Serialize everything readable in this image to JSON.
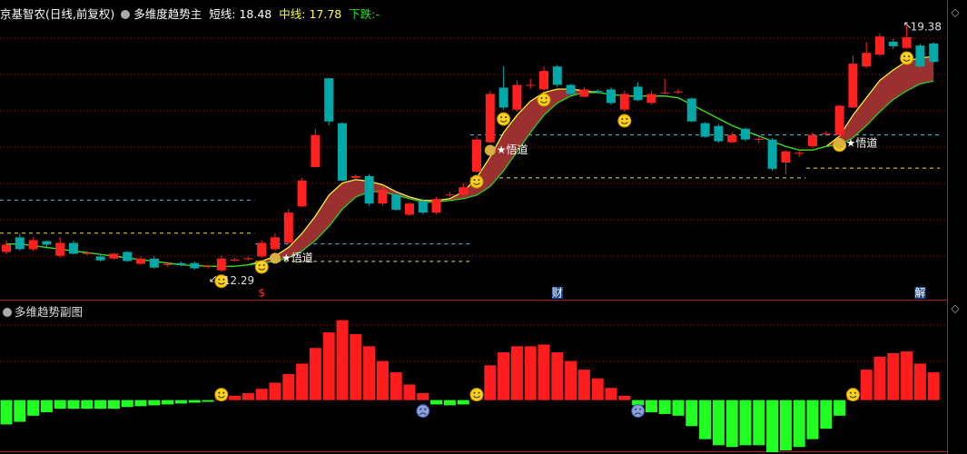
{
  "header": {
    "title": "京基智农(日线,前复权)",
    "indicator": "多维度趋势主",
    "down_label": "下跌:",
    "down_value": "-"
  },
  "chart_data": [
    {
      "type": "candlestick",
      "open": [
        12.87,
        13.29,
        12.95,
        13.18,
        12.76,
        13.13,
        12.82,
        12.74,
        12.68,
        12.87,
        12.53,
        12.68,
        12.5,
        12.55,
        12.55,
        12.44,
        12.34,
        12.62,
        12.66,
        12.74,
        12.95,
        13.13,
        14.18,
        15.31,
        17.86,
        16.57,
        15.0,
        15.05,
        14.26,
        14.52,
        13.94,
        14.34,
        14.0,
        14.5,
        14.52,
        15.18,
        16.02,
        17.59,
        16.96,
        17.65,
        17.54,
        18.2,
        17.67,
        17.33,
        17.5,
        17.54,
        16.96,
        17.62,
        17.15,
        17.43,
        17.46,
        17.28,
        16.57,
        16.49,
        16.02,
        16.41,
        16.1,
        16.1,
        15.44,
        15.7,
        15.91,
        16.26,
        16.23,
        17.02,
        18.2,
        18.54,
        18.91,
        18.73,
        18.8,
        18.86
      ],
      "high": [
        13.2,
        13.4,
        13.3,
        13.2,
        13.3,
        13.2,
        12.9,
        12.8,
        12.85,
        12.9,
        12.75,
        12.75,
        12.58,
        12.6,
        12.6,
        12.5,
        12.78,
        12.7,
        12.74,
        13.2,
        13.4,
        14.1,
        15.0,
        16.4,
        17.86,
        16.6,
        15.1,
        15.1,
        14.75,
        14.55,
        14.3,
        14.4,
        14.45,
        14.6,
        14.85,
        16.2,
        17.5,
        18.2,
        17.8,
        17.85,
        18.2,
        18.25,
        17.7,
        17.6,
        17.55,
        17.6,
        17.5,
        17.75,
        17.5,
        17.85,
        17.55,
        17.3,
        16.6,
        16.55,
        16.3,
        16.45,
        16.2,
        16.15,
        15.8,
        15.8,
        16.3,
        16.35,
        17.1,
        18.5,
        18.9,
        19.15,
        19.0,
        19.38,
        18.85,
        18.9
      ],
      "low": [
        12.8,
        12.9,
        12.9,
        13.0,
        12.7,
        12.8,
        12.78,
        12.6,
        12.65,
        12.58,
        12.5,
        12.38,
        12.45,
        12.46,
        12.36,
        12.4,
        12.29,
        12.6,
        12.62,
        12.7,
        12.9,
        13.1,
        14.15,
        15.3,
        16.5,
        14.9,
        14.95,
        14.2,
        14.2,
        14.05,
        13.9,
        13.95,
        13.95,
        14.45,
        14.5,
        15.15,
        16.0,
        16.95,
        16.9,
        17.55,
        17.5,
        17.6,
        17.35,
        17.3,
        17.45,
        17.1,
        16.9,
        17.2,
        17.1,
        17.4,
        17.4,
        16.6,
        16.15,
        16.0,
        16.0,
        16.05,
        16.0,
        15.2,
        15.1,
        15.6,
        15.85,
        16.2,
        16.2,
        17.0,
        18.15,
        18.5,
        18.7,
        18.7,
        18.15,
        18.3
      ],
      "close": [
        13.08,
        12.95,
        13.21,
        13.08,
        13.13,
        12.82,
        12.84,
        12.63,
        12.82,
        12.61,
        12.68,
        12.42,
        12.52,
        12.5,
        12.4,
        12.46,
        12.68,
        12.65,
        12.69,
        13.13,
        13.29,
        14.0,
        14.92,
        16.23,
        16.62,
        14.92,
        15.05,
        14.26,
        14.65,
        14.08,
        14.26,
        14.0,
        14.39,
        14.52,
        14.73,
        16.1,
        17.41,
        17.02,
        17.67,
        17.67,
        18.07,
        17.67,
        17.41,
        17.54,
        17.49,
        17.15,
        17.41,
        17.23,
        17.41,
        17.45,
        17.48,
        16.62,
        16.18,
        16.05,
        16.23,
        16.1,
        16.12,
        15.26,
        15.76,
        15.72,
        16.23,
        16.28,
        17.07,
        18.28,
        18.59,
        19.06,
        18.78,
        19.04,
        18.2,
        18.33
      ],
      "up_color": "#ff2020",
      "down_color": "#00a8a8",
      "series": [
        {
          "name": "短线:",
          "color": "#ffff40",
          "values": [
            13.1,
            13.1,
            13.05,
            13.0,
            12.95,
            12.9,
            12.85,
            12.8,
            12.75,
            12.7,
            12.65,
            12.6,
            12.55,
            12.5,
            12.48,
            12.46,
            12.45,
            12.46,
            12.5,
            12.6,
            12.75,
            13.0,
            13.4,
            13.9,
            14.5,
            14.85,
            14.95,
            14.9,
            14.8,
            14.6,
            14.45,
            14.35,
            14.35,
            14.4,
            14.6,
            15.0,
            15.6,
            16.3,
            16.8,
            17.2,
            17.45,
            17.55,
            17.55,
            17.5,
            17.45,
            17.4,
            17.35,
            17.35,
            17.35,
            17.35,
            17.3,
            17.1,
            16.9,
            16.7,
            16.5,
            16.35,
            16.2,
            16.05,
            15.9,
            15.8,
            15.8,
            15.9,
            16.2,
            16.8,
            17.3,
            17.8,
            18.1,
            18.35,
            18.45,
            18.48
          ]
        },
        {
          "name": "中线:",
          "color": "#20e020",
          "values": [
            13.1,
            13.1,
            13.05,
            13.0,
            12.95,
            12.9,
            12.85,
            12.8,
            12.75,
            12.7,
            12.65,
            12.6,
            12.55,
            12.5,
            12.48,
            12.46,
            12.45,
            12.46,
            12.5,
            12.55,
            12.6,
            12.7,
            12.9,
            13.2,
            13.6,
            14.1,
            14.45,
            14.6,
            14.6,
            14.5,
            14.4,
            14.3,
            14.3,
            14.35,
            14.4,
            14.5,
            14.75,
            15.2,
            15.75,
            16.3,
            16.8,
            17.15,
            17.35,
            17.45,
            17.45,
            17.4,
            17.35,
            17.35,
            17.35,
            17.35,
            17.3,
            17.1,
            16.9,
            16.7,
            16.5,
            16.35,
            16.2,
            16.05,
            15.9,
            15.8,
            15.8,
            15.9,
            15.95,
            16.15,
            16.5,
            16.9,
            17.25,
            17.5,
            17.7,
            17.78
          ]
        }
      ],
      "band_color": "#9a3030",
      "ylim": [
        11.5,
        19.9
      ],
      "levels": [
        {
          "value": 14.36,
          "start": 0,
          "end": 18,
          "color": "#3cc8e0"
        },
        {
          "value": 13.41,
          "start": 0,
          "end": 18,
          "color": "#e8e040"
        },
        {
          "value": 13.1,
          "start": 19,
          "end": 34,
          "color": "#3cc8e0"
        },
        {
          "value": 12.6,
          "start": 19,
          "end": 34,
          "color": "#e8e040"
        },
        {
          "value": 16.23,
          "start": 35,
          "end": 69,
          "color": "#3cc8e0"
        },
        {
          "value": 15.0,
          "start": 35,
          "end": 59,
          "color": "#e8e040"
        },
        {
          "value": 15.28,
          "start": 60,
          "end": 69,
          "color": "#e8e040"
        }
      ],
      "smile_points": [
        16,
        19,
        35,
        37,
        40,
        46,
        62,
        67
      ],
      "signals": [
        {
          "index": 20,
          "label": "★悟道"
        },
        {
          "index": 36,
          "label": "★悟道"
        },
        {
          "index": 62,
          "label": "★悟道"
        }
      ],
      "event_tags": [
        {
          "index": 19,
          "label": "$"
        },
        {
          "index": 41,
          "label": "财"
        },
        {
          "index": 68,
          "label": "解"
        }
      ]
    },
    {
      "type": "bar",
      "title": "多维趋势副图",
      "values": [
        -28,
        -25,
        -18,
        -14,
        -10,
        -10,
        -10,
        -10,
        -10,
        -8,
        -7,
        -6,
        -5,
        -4,
        -3,
        -2,
        2,
        5,
        8,
        13,
        20,
        30,
        42,
        60,
        78,
        92,
        76,
        62,
        45,
        32,
        18,
        8,
        -5,
        -6,
        -5,
        8,
        40,
        55,
        62,
        62,
        64,
        55,
        45,
        35,
        25,
        14,
        5,
        -6,
        -14,
        -16,
        -18,
        -30,
        -45,
        -52,
        -54,
        -52,
        -52,
        -60,
        -58,
        -54,
        -45,
        -33,
        -18,
        10,
        35,
        50,
        54,
        56,
        42,
        32
      ],
      "up_color": "#ff1c1c",
      "down_color": "#22ff22",
      "ylim": [
        -60,
        100
      ],
      "happy_points": [
        16,
        35,
        63
      ],
      "sad_points": [
        31,
        47
      ]
    }
  ]
}
